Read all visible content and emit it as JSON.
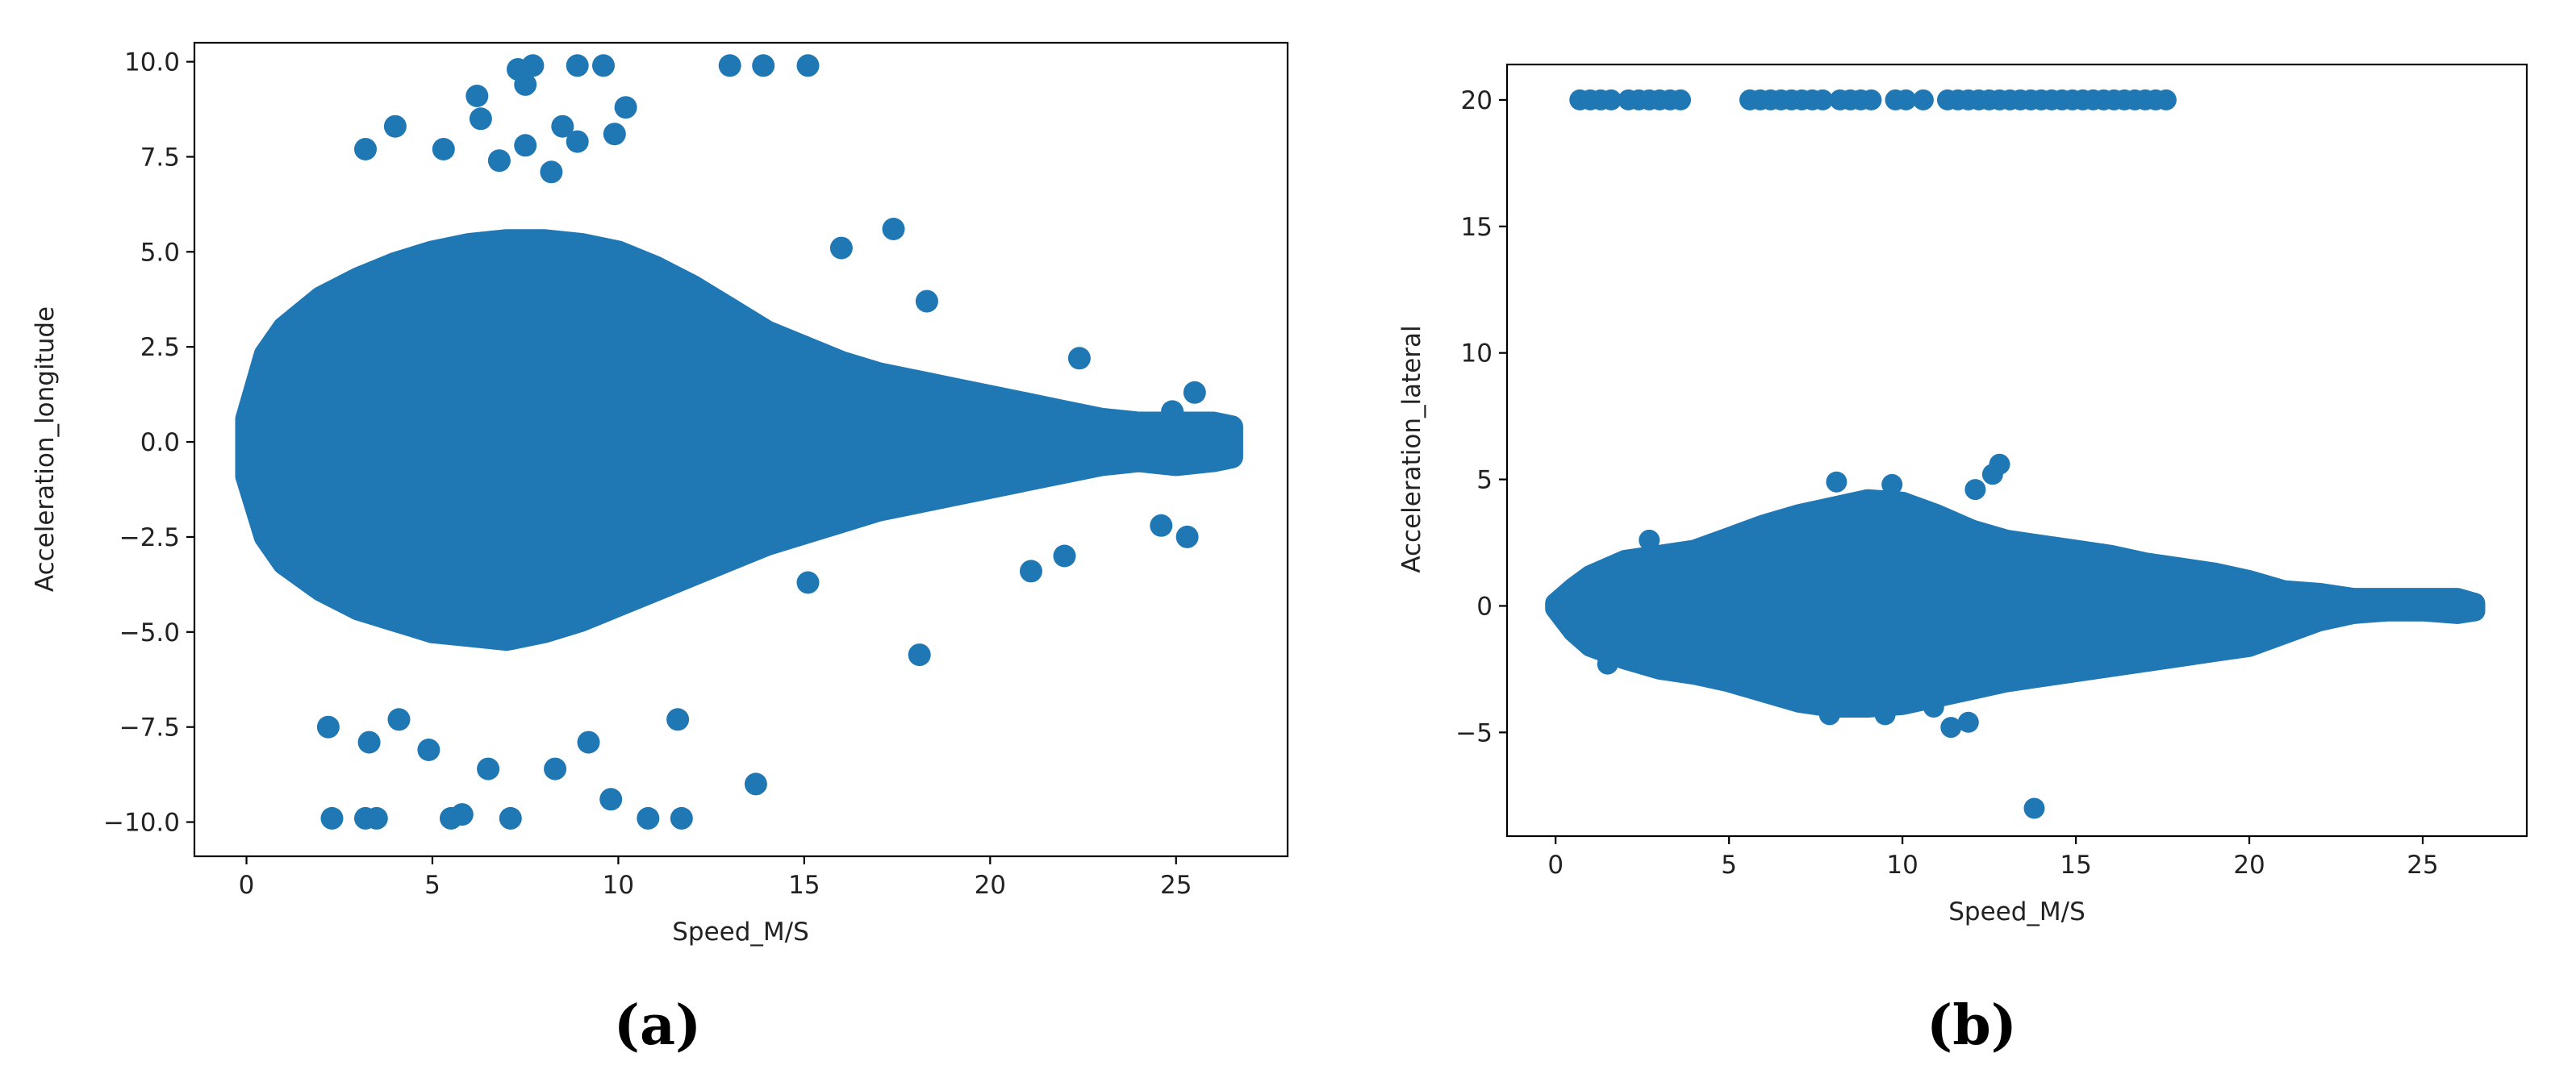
{
  "chart_data": [
    {
      "type": "scatter",
      "panel_label": "(a)",
      "xlabel": "Speed_M/S",
      "ylabel": "Acceleration_longitude",
      "xlim": [
        -1.4,
        28.0
      ],
      "ylim": [
        -10.9,
        10.5
      ],
      "xticks": [
        0,
        5,
        10,
        15,
        20,
        25
      ],
      "xtick_labels": [
        "0",
        "5",
        "10",
        "15",
        "20",
        "25"
      ],
      "yticks": [
        -10.0,
        -7.5,
        -5.0,
        -2.5,
        0.0,
        2.5,
        5.0,
        7.5,
        10.0
      ],
      "ytick_labels": [
        "−10.0",
        "−7.5",
        "−5.0",
        "−2.5",
        "0.0",
        "2.5",
        "5.0",
        "7.5",
        "10.0"
      ],
      "grid": false,
      "color": "#1f77b4",
      "dense_region_envelope": {
        "x": [
          0,
          0.5,
          1,
          2,
          3,
          4,
          5,
          6,
          7,
          8,
          9,
          10,
          11,
          12,
          13,
          14,
          15,
          16,
          17,
          18,
          19,
          20,
          21,
          22,
          23,
          24,
          25,
          26,
          26.5
        ],
        "y_upper": [
          0.6,
          2.3,
          3.0,
          3.8,
          4.3,
          4.7,
          5.0,
          5.2,
          5.3,
          5.3,
          5.2,
          5.0,
          4.6,
          4.1,
          3.5,
          2.9,
          2.5,
          2.1,
          1.8,
          1.6,
          1.4,
          1.2,
          1.0,
          0.8,
          0.6,
          0.5,
          0.5,
          0.5,
          0.4
        ],
        "y_lower": [
          -0.9,
          -2.5,
          -3.2,
          -3.9,
          -4.4,
          -4.7,
          -5.0,
          -5.1,
          -5.2,
          -5.0,
          -4.7,
          -4.3,
          -3.9,
          -3.5,
          -3.1,
          -2.7,
          -2.4,
          -2.1,
          -1.8,
          -1.6,
          -1.4,
          -1.2,
          -1.0,
          -0.8,
          -0.6,
          -0.5,
          -0.6,
          -0.5,
          -0.4
        ]
      },
      "outliers": [
        {
          "x": 2.3,
          "y": -9.9
        },
        {
          "x": 3.2,
          "y": -9.9
        },
        {
          "x": 3.5,
          "y": -9.9
        },
        {
          "x": 5.5,
          "y": -9.9
        },
        {
          "x": 5.8,
          "y": -9.8
        },
        {
          "x": 7.1,
          "y": -9.9
        },
        {
          "x": 10.8,
          "y": -9.9
        },
        {
          "x": 11.7,
          "y": -9.9
        },
        {
          "x": 9.8,
          "y": -9.4
        },
        {
          "x": 13.7,
          "y": -9.0
        },
        {
          "x": 4.9,
          "y": -8.1
        },
        {
          "x": 6.5,
          "y": -8.6
        },
        {
          "x": 8.3,
          "y": -8.6
        },
        {
          "x": 9.2,
          "y": -7.9
        },
        {
          "x": 3.3,
          "y": -7.9
        },
        {
          "x": 2.2,
          "y": -7.5
        },
        {
          "x": 4.1,
          "y": -7.3
        },
        {
          "x": 11.6,
          "y": -7.3
        },
        {
          "x": 18.1,
          "y": -5.6
        },
        {
          "x": 15.1,
          "y": -3.7
        },
        {
          "x": 21.1,
          "y": -3.4
        },
        {
          "x": 22.0,
          "y": -3.0
        },
        {
          "x": 24.6,
          "y": -2.2
        },
        {
          "x": 25.3,
          "y": -2.5
        },
        {
          "x": 9.6,
          "y": 9.9
        },
        {
          "x": 8.9,
          "y": 9.9
        },
        {
          "x": 13.0,
          "y": 9.9
        },
        {
          "x": 13.9,
          "y": 9.9
        },
        {
          "x": 15.1,
          "y": 9.9
        },
        {
          "x": 7.7,
          "y": 9.9
        },
        {
          "x": 7.3,
          "y": 9.8
        },
        {
          "x": 7.5,
          "y": 9.4
        },
        {
          "x": 6.2,
          "y": 9.1
        },
        {
          "x": 6.3,
          "y": 8.5
        },
        {
          "x": 10.2,
          "y": 8.8
        },
        {
          "x": 4.0,
          "y": 8.3
        },
        {
          "x": 8.5,
          "y": 8.3
        },
        {
          "x": 9.9,
          "y": 8.1
        },
        {
          "x": 3.2,
          "y": 7.7
        },
        {
          "x": 5.3,
          "y": 7.7
        },
        {
          "x": 7.5,
          "y": 7.8
        },
        {
          "x": 8.9,
          "y": 7.9
        },
        {
          "x": 6.8,
          "y": 7.4
        },
        {
          "x": 8.2,
          "y": 7.1
        },
        {
          "x": 17.4,
          "y": 5.6
        },
        {
          "x": 16.0,
          "y": 5.1
        },
        {
          "x": 18.3,
          "y": 3.7
        },
        {
          "x": 22.4,
          "y": 2.2
        },
        {
          "x": 25.5,
          "y": 1.3
        },
        {
          "x": 24.9,
          "y": 0.8
        }
      ]
    },
    {
      "type": "scatter",
      "panel_label": "(b)",
      "xlabel": "Speed_M/S",
      "ylabel": "Acceleration_lateral",
      "xlim": [
        -1.4,
        28.0
      ],
      "ylim": [
        -9.1,
        21.4
      ],
      "xticks": [
        0,
        5,
        10,
        15,
        20,
        25
      ],
      "xtick_labels": [
        "0",
        "5",
        "10",
        "15",
        "20",
        "25"
      ],
      "yticks": [
        -5,
        0,
        5,
        10,
        15,
        20
      ],
      "ytick_labels": [
        "−5",
        "0",
        "5",
        "10",
        "15",
        "20"
      ],
      "grid": false,
      "color": "#1f77b4",
      "dense_region_envelope": {
        "x": [
          0,
          0.5,
          1,
          2,
          3,
          4,
          5,
          6,
          7,
          8,
          9,
          10,
          11,
          12,
          13,
          14,
          15,
          16,
          17,
          18,
          19,
          20,
          21,
          22,
          23,
          24,
          25,
          26,
          26.5
        ],
        "y_upper": [
          0.1,
          0.7,
          1.2,
          1.8,
          2.0,
          2.2,
          2.7,
          3.2,
          3.6,
          3.9,
          4.2,
          4.1,
          3.6,
          3.0,
          2.6,
          2.4,
          2.2,
          2.0,
          1.7,
          1.5,
          1.3,
          1.0,
          0.6,
          0.5,
          0.3,
          0.3,
          0.3,
          0.3,
          0.1
        ],
        "y_lower": [
          -0.1,
          -1.0,
          -1.6,
          -2.1,
          -2.5,
          -2.7,
          -3.0,
          -3.4,
          -3.8,
          -4.0,
          -4.0,
          -3.9,
          -3.6,
          -3.3,
          -3.0,
          -2.8,
          -2.6,
          -2.4,
          -2.2,
          -2.0,
          -1.8,
          -1.6,
          -1.1,
          -0.6,
          -0.3,
          -0.2,
          -0.2,
          -0.3,
          -0.2
        ]
      },
      "outliers": [
        {
          "x": 0.7,
          "y": 20
        },
        {
          "x": 1.0,
          "y": 20
        },
        {
          "x": 1.3,
          "y": 20
        },
        {
          "x": 1.6,
          "y": 20
        },
        {
          "x": 2.1,
          "y": 20
        },
        {
          "x": 2.4,
          "y": 20
        },
        {
          "x": 2.7,
          "y": 20
        },
        {
          "x": 3.0,
          "y": 20
        },
        {
          "x": 3.3,
          "y": 20
        },
        {
          "x": 3.6,
          "y": 20
        },
        {
          "x": 5.6,
          "y": 20
        },
        {
          "x": 5.9,
          "y": 20
        },
        {
          "x": 6.2,
          "y": 20
        },
        {
          "x": 6.5,
          "y": 20
        },
        {
          "x": 6.8,
          "y": 20
        },
        {
          "x": 7.1,
          "y": 20
        },
        {
          "x": 7.4,
          "y": 20
        },
        {
          "x": 7.7,
          "y": 20
        },
        {
          "x": 8.2,
          "y": 20
        },
        {
          "x": 8.5,
          "y": 20
        },
        {
          "x": 8.8,
          "y": 20
        },
        {
          "x": 9.1,
          "y": 20
        },
        {
          "x": 9.8,
          "y": 20
        },
        {
          "x": 10.1,
          "y": 20
        },
        {
          "x": 10.6,
          "y": 20
        },
        {
          "x": 11.3,
          "y": 20
        },
        {
          "x": 11.6,
          "y": 20
        },
        {
          "x": 11.9,
          "y": 20
        },
        {
          "x": 12.2,
          "y": 20
        },
        {
          "x": 12.5,
          "y": 20
        },
        {
          "x": 12.8,
          "y": 20
        },
        {
          "x": 13.1,
          "y": 20
        },
        {
          "x": 13.4,
          "y": 20
        },
        {
          "x": 13.7,
          "y": 20
        },
        {
          "x": 14.0,
          "y": 20
        },
        {
          "x": 14.3,
          "y": 20
        },
        {
          "x": 14.6,
          "y": 20
        },
        {
          "x": 14.9,
          "y": 20
        },
        {
          "x": 15.2,
          "y": 20
        },
        {
          "x": 15.5,
          "y": 20
        },
        {
          "x": 15.8,
          "y": 20
        },
        {
          "x": 16.1,
          "y": 20
        },
        {
          "x": 16.4,
          "y": 20
        },
        {
          "x": 16.7,
          "y": 20
        },
        {
          "x": 17.0,
          "y": 20
        },
        {
          "x": 17.3,
          "y": 20
        },
        {
          "x": 17.6,
          "y": 20
        },
        {
          "x": 13.8,
          "y": -8.0
        },
        {
          "x": 12.1,
          "y": 4.6
        },
        {
          "x": 12.6,
          "y": 5.2
        },
        {
          "x": 12.8,
          "y": 5.6
        },
        {
          "x": 8.1,
          "y": 4.9
        },
        {
          "x": 9.7,
          "y": 4.8
        },
        {
          "x": 1.5,
          "y": -2.3
        },
        {
          "x": 11.4,
          "y": -4.8
        },
        {
          "x": 11.9,
          "y": -4.6
        },
        {
          "x": 10.9,
          "y": -4.0
        },
        {
          "x": 2.7,
          "y": 2.6
        },
        {
          "x": 7.9,
          "y": -4.3
        },
        {
          "x": 9.5,
          "y": -4.3
        }
      ]
    }
  ]
}
